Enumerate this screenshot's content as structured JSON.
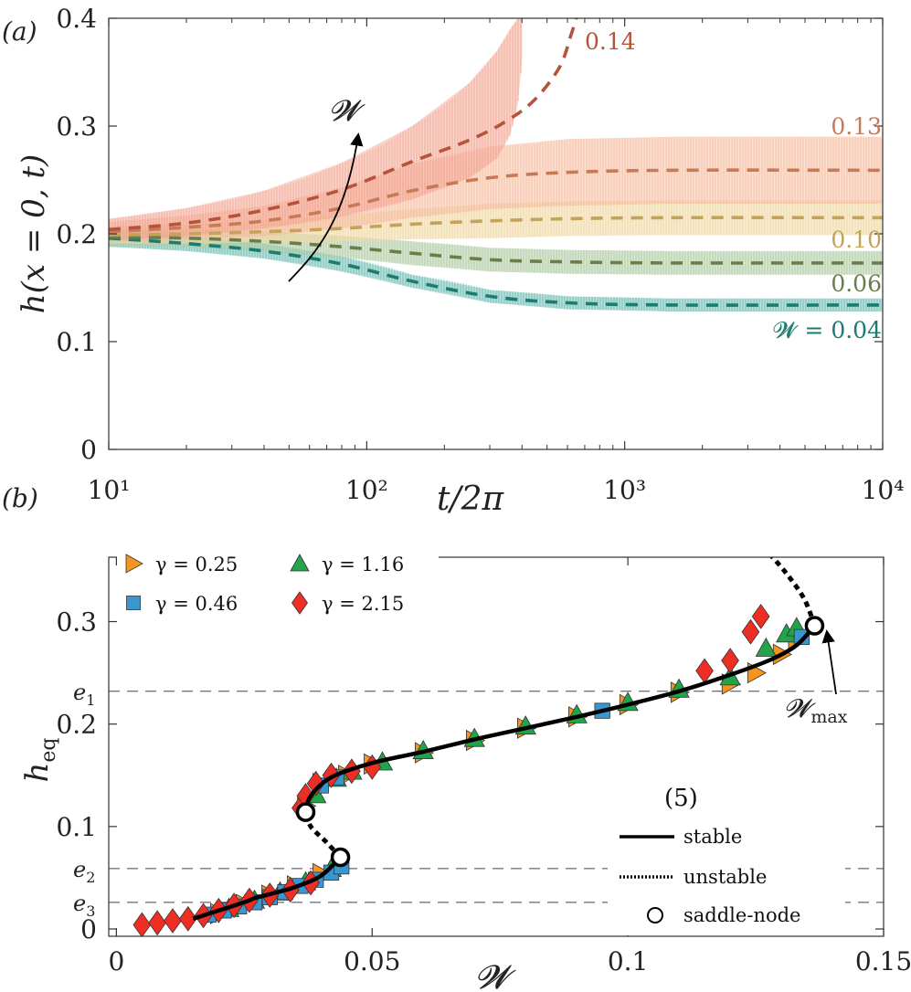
{
  "chart_data": [
    {
      "panel": "(a)",
      "type": "line",
      "x_scale": "log",
      "xlim": [
        10,
        10000
      ],
      "ylim": [
        0,
        0.4
      ],
      "xlabel": "t/2π",
      "ylabel": "h(x = 0, t)",
      "x_ticks": [
        {
          "v": 10,
          "label": "10¹"
        },
        {
          "v": 100,
          "label": "10²"
        },
        {
          "v": 1000,
          "label": "10³"
        },
        {
          "v": 10000,
          "label": "10⁴"
        }
      ],
      "y_ticks": [
        {
          "v": 0,
          "label": "0"
        },
        {
          "v": 0.1,
          "label": "0.1"
        },
        {
          "v": 0.2,
          "label": "0.2"
        },
        {
          "v": 0.3,
          "label": "0.3"
        },
        {
          "v": 0.4,
          "label": "0.4"
        }
      ],
      "arrow_label": "𝓦",
      "series": [
        {
          "name": "𝓦 = 0.04",
          "line": "#1d7b70",
          "band": "#62b8ad",
          "t": [
            10,
            20,
            40,
            80,
            150,
            300,
            600,
            1500,
            10000
          ],
          "mean": [
            0.196,
            0.191,
            0.184,
            0.172,
            0.156,
            0.142,
            0.136,
            0.134,
            0.134
          ],
          "amp": [
            0.008,
            0.007,
            0.007,
            0.007,
            0.006,
            0.006,
            0.006,
            0.006,
            0.006
          ]
        },
        {
          "name": "0.06",
          "line": "#6c7d4c",
          "band": "#a9c79b",
          "t": [
            10,
            20,
            40,
            80,
            150,
            300,
            600,
            1500,
            10000
          ],
          "mean": [
            0.197,
            0.196,
            0.193,
            0.188,
            0.182,
            0.176,
            0.174,
            0.173,
            0.173
          ],
          "amp": [
            0.008,
            0.008,
            0.009,
            0.01,
            0.011,
            0.011,
            0.011,
            0.011,
            0.011
          ]
        },
        {
          "name": "0.10",
          "line": "#c3a359",
          "band": "#efd49b",
          "t": [
            10,
            20,
            40,
            80,
            150,
            300,
            600,
            1500,
            10000
          ],
          "mean": [
            0.199,
            0.2,
            0.202,
            0.205,
            0.209,
            0.212,
            0.214,
            0.215,
            0.215
          ],
          "amp": [
            0.008,
            0.009,
            0.01,
            0.012,
            0.014,
            0.016,
            0.016,
            0.016,
            0.016
          ]
        },
        {
          "name": "0.13",
          "line": "#c67a55",
          "band": "#f6b89a",
          "t": [
            10,
            20,
            40,
            80,
            150,
            300,
            600,
            1500,
            10000
          ],
          "mean": [
            0.202,
            0.206,
            0.212,
            0.224,
            0.24,
            0.252,
            0.257,
            0.259,
            0.259
          ],
          "amp": [
            0.009,
            0.011,
            0.014,
            0.019,
            0.025,
            0.029,
            0.031,
            0.031,
            0.031
          ]
        },
        {
          "name": "0.14",
          "line": "#b5533b",
          "band": "#f29f8c",
          "dashed_only_after": 300,
          "t": [
            10,
            20,
            40,
            80,
            150,
            250,
            350,
            450,
            560,
            620,
            650
          ],
          "mean": [
            0.204,
            0.21,
            0.222,
            0.241,
            0.267,
            0.287,
            0.305,
            0.325,
            0.355,
            0.385,
            0.4
          ],
          "amp": [
            0.01,
            0.013,
            0.018,
            0.026,
            0.037,
            0.05,
            0.066,
            0.075,
            0.08,
            0.08,
            0.08
          ],
          "band_t": [
            10,
            20,
            40,
            80,
            150,
            250,
            320,
            360,
            385,
            400
          ],
          "band_lo": [
            0.194,
            0.198,
            0.205,
            0.216,
            0.232,
            0.252,
            0.27,
            0.292,
            0.32,
            0.36
          ],
          "band_hi": [
            0.214,
            0.224,
            0.24,
            0.266,
            0.3,
            0.34,
            0.37,
            0.39,
            0.4,
            0.4
          ]
        }
      ]
    },
    {
      "panel": "(b)",
      "type": "scatter",
      "xlim": [
        -0.0015,
        0.15
      ],
      "ylim": [
        0,
        0.37
      ],
      "xlabel": "𝓦",
      "ylabel": "h_eq",
      "x_ticks": [
        {
          "v": 0,
          "label": "0"
        },
        {
          "v": 0.05,
          "label": "0.05"
        },
        {
          "v": 0.1,
          "label": "0.1"
        },
        {
          "v": 0.15,
          "label": "0.15"
        }
      ],
      "y_ticks": [
        {
          "v": 0,
          "label": "0"
        },
        {
          "v": 0.1,
          "label": "0.1"
        },
        {
          "v": 0.2,
          "label": "0.2"
        },
        {
          "v": 0.3,
          "label": "0.3"
        }
      ],
      "e_lines": [
        {
          "label": "e",
          "sub": "1",
          "h": 0.232
        },
        {
          "label": "e",
          "sub": "2",
          "h": 0.059
        },
        {
          "label": "e",
          "sub": "3",
          "h": 0.026
        }
      ],
      "stable_upper": {
        "W": [
          0.037,
          0.038,
          0.042,
          0.05,
          0.06,
          0.07,
          0.08,
          0.09,
          0.1,
          0.11,
          0.12,
          0.128,
          0.133,
          0.1365
        ],
        "h": [
          0.114,
          0.13,
          0.148,
          0.162,
          0.173,
          0.185,
          0.196,
          0.207,
          0.219,
          0.232,
          0.248,
          0.263,
          0.277,
          0.296
        ]
      },
      "stable_lower": {
        "W": [
          0.015,
          0.02,
          0.025,
          0.027,
          0.03,
          0.035,
          0.04,
          0.0438
        ],
        "h": [
          0.01,
          0.018,
          0.026,
          0.03,
          0.034,
          0.041,
          0.052,
          0.07
        ]
      },
      "unstable_mid": {
        "W": [
          0.0438,
          0.041,
          0.038,
          0.037
        ],
        "h": [
          0.07,
          0.085,
          0.1,
          0.114
        ]
      },
      "unstable_top": {
        "W": [
          0.1365,
          0.1345,
          0.131,
          0.127
        ],
        "h": [
          0.296,
          0.322,
          0.347,
          0.37
        ]
      },
      "saddle_nodes": [
        {
          "W": 0.037,
          "h": 0.114
        },
        {
          "W": 0.0438,
          "h": 0.07
        },
        {
          "W": 0.1365,
          "h": 0.296
        }
      ],
      "annotation": {
        "label": "𝓦",
        "sub": "max"
      },
      "eq_label": "(5)",
      "legend": {
        "markers": [
          {
            "label": "γ = 0.25",
            "shape": "triangle-right",
            "color": "#f7941d"
          },
          {
            "label": "γ = 1.16",
            "shape": "triangle-up",
            "color": "#22a54a"
          },
          {
            "label": "γ = 0.46",
            "shape": "square",
            "color": "#3a96cf"
          },
          {
            "label": "γ = 2.15",
            "shape": "diamond",
            "color": "#ee2d24"
          }
        ],
        "lines": [
          {
            "label": "stable",
            "style": "solid"
          },
          {
            "label": "unstable",
            "style": "dotted"
          },
          {
            "label": "saddle-node",
            "style": "circle"
          }
        ]
      },
      "series": [
        {
          "name": "γ = 0.25",
          "shape": "triangle-right",
          "color": "#f7941d",
          "W": [
            0.02,
            0.025,
            0.03,
            0.035,
            0.04,
            0.037,
            0.04,
            0.045,
            0.05,
            0.06,
            0.07,
            0.08,
            0.09,
            0.1,
            0.11,
            0.12,
            0.125,
            0.13,
            0.133
          ],
          "h": [
            0.015,
            0.024,
            0.033,
            0.042,
            0.054,
            0.12,
            0.142,
            0.15,
            0.161,
            0.172,
            0.184,
            0.196,
            0.207,
            0.219,
            0.231,
            0.239,
            0.25,
            0.268,
            0.282
          ]
        },
        {
          "name": "γ = 1.16",
          "shape": "triangle-up",
          "color": "#22a54a",
          "W": [
            0.022,
            0.027,
            0.032,
            0.037,
            0.042,
            0.039,
            0.043,
            0.046,
            0.052,
            0.06,
            0.07,
            0.08,
            0.09,
            0.1,
            0.11,
            0.12,
            0.127,
            0.131,
            0.133
          ],
          "h": [
            0.02,
            0.028,
            0.036,
            0.046,
            0.059,
            0.131,
            0.147,
            0.154,
            0.163,
            0.174,
            0.186,
            0.198,
            0.209,
            0.221,
            0.234,
            0.246,
            0.274,
            0.288,
            0.294
          ]
        },
        {
          "name": "γ = 0.46",
          "shape": "square",
          "color": "#3a96cf",
          "W": [
            0.018,
            0.021,
            0.024,
            0.027,
            0.03,
            0.033,
            0.036,
            0.039,
            0.042,
            0.044,
            0.04,
            0.043,
            0.095,
            0.134
          ],
          "h": [
            0.014,
            0.018,
            0.022,
            0.026,
            0.031,
            0.036,
            0.042,
            0.048,
            0.055,
            0.061,
            0.14,
            0.148,
            0.213,
            0.285
          ]
        },
        {
          "name": "γ = 2.15",
          "shape": "diamond",
          "color": "#ee2d24",
          "W": [
            0.005,
            0.008,
            0.011,
            0.014,
            0.017,
            0.02,
            0.023,
            0.026,
            0.03,
            0.034,
            0.038,
            0.036,
            0.037,
            0.039,
            0.042,
            0.046,
            0.05,
            0.115,
            0.12,
            0.124,
            0.126
          ],
          "h": [
            0.004,
            0.006,
            0.008,
            0.01,
            0.013,
            0.018,
            0.023,
            0.028,
            0.033,
            0.038,
            0.045,
            0.118,
            0.13,
            0.142,
            0.15,
            0.154,
            0.158,
            0.252,
            0.262,
            0.29,
            0.305
          ]
        }
      ]
    }
  ]
}
